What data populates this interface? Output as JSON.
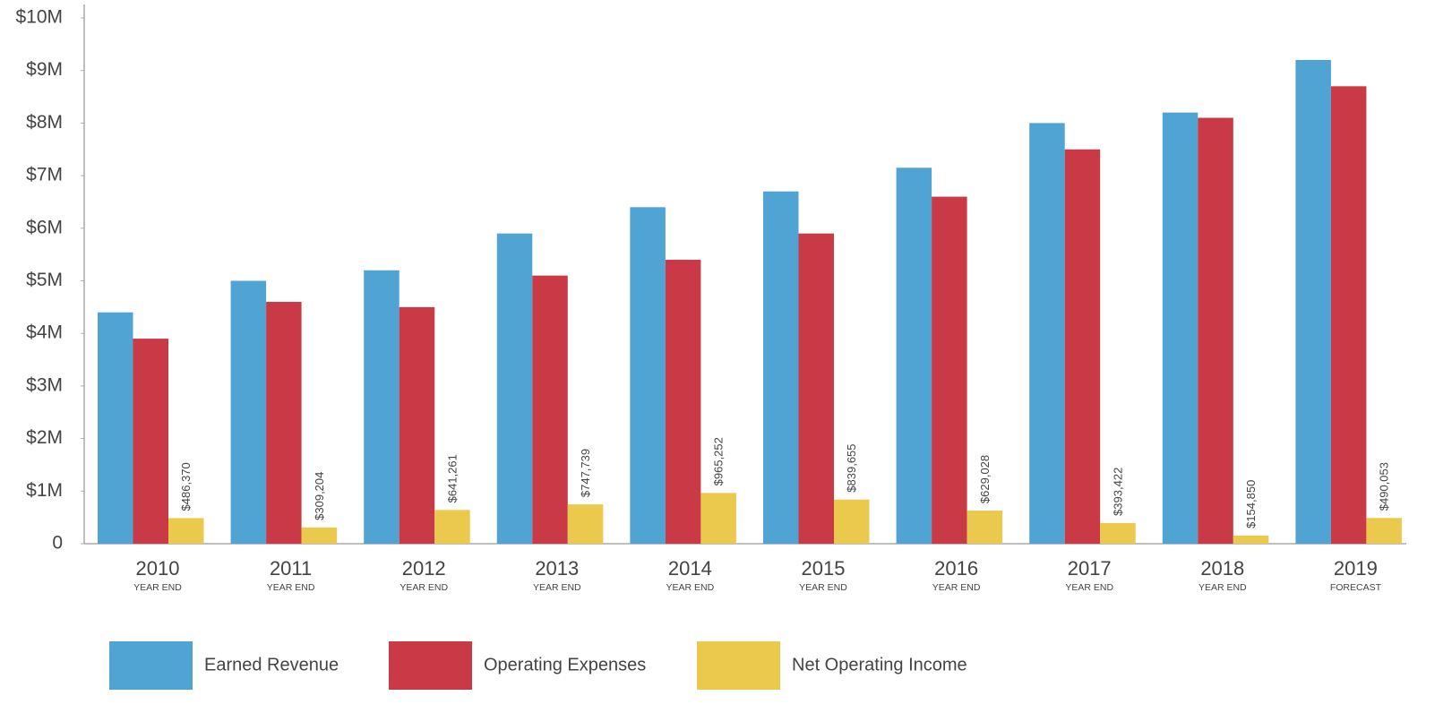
{
  "chart_data": {
    "type": "bar",
    "categories": [
      "2010",
      "2011",
      "2012",
      "2013",
      "2014",
      "2015",
      "2016",
      "2017",
      "2018",
      "2019"
    ],
    "sublabels": [
      "YEAR END",
      "YEAR END",
      "YEAR END",
      "YEAR END",
      "YEAR END",
      "YEAR END",
      "YEAR END",
      "YEAR END",
      "YEAR END",
      "FORECAST"
    ],
    "series": [
      {
        "name": "Earned Revenue",
        "color": "#4fa4d4",
        "values": [
          4400000,
          5000000,
          5200000,
          5900000,
          6400000,
          6700000,
          7150000,
          8000000,
          8200000,
          9200000
        ]
      },
      {
        "name": "Operating Expenses",
        "color": "#c93a46",
        "values": [
          3900000,
          4600000,
          4500000,
          5100000,
          5400000,
          5900000,
          6600000,
          7500000,
          8100000,
          8700000
        ]
      },
      {
        "name": "Net Operating Income",
        "color": "#ebc94c",
        "values": [
          486370,
          309204,
          641261,
          747739,
          965252,
          839655,
          629028,
          393422,
          154850,
          490053
        ],
        "value_labels": [
          "$486,370",
          "$309,204",
          "$641,261",
          "$747,739",
          "$965,252",
          "$839,655",
          "$629,028",
          "$393,422",
          "$154,850",
          "$490,053"
        ]
      }
    ],
    "ylim": [
      0,
      10000000
    ],
    "yticks": [
      0,
      {
        "value": 1000000,
        "label": "$1M"
      },
      {
        "value": 2000000,
        "label": "$2M"
      },
      {
        "value": 3000000,
        "label": "$3M"
      },
      {
        "value": 4000000,
        "label": "$4M"
      },
      {
        "value": 5000000,
        "label": "$5M"
      },
      {
        "value": 6000000,
        "label": "$6M"
      },
      {
        "value": 7000000,
        "label": "$7M"
      },
      {
        "value": 8000000,
        "label": "$8M"
      },
      {
        "value": 9000000,
        "label": "$9M"
      },
      {
        "value": 10000000,
        "label": "$10M"
      }
    ],
    "legend": "bottom-left"
  }
}
